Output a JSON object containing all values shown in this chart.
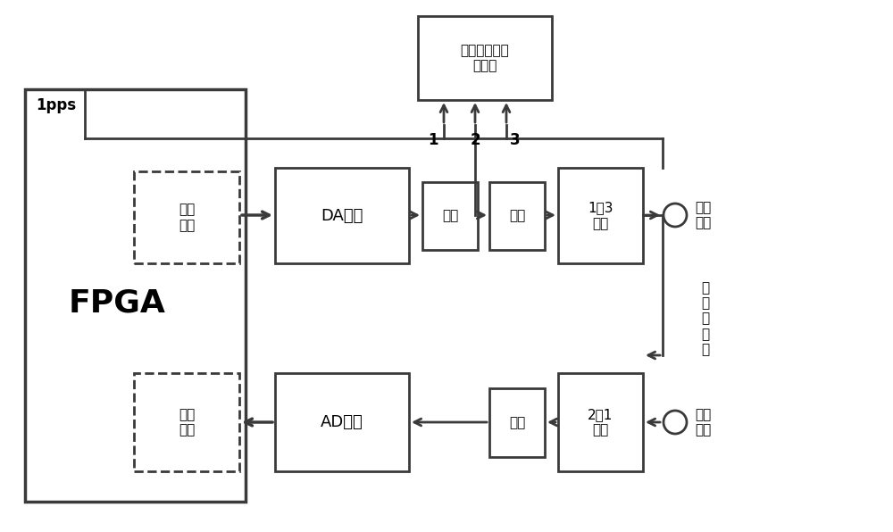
{
  "bg_color": "#ffffff",
  "lc": "#3a3a3a",
  "lw": 2.0,
  "fpga_label": "FPGA",
  "pps_label": "1pps",
  "mod_label": "调制\n输出",
  "rcv_label": "接收\n处理",
  "da_label": "DA转换",
  "amp_label": "放大",
  "filt1_label": "滤波",
  "sw1_label": "1切3\n开关",
  "ad_label": "AD转换",
  "filt2_label": "滤波",
  "sw2_label": "2选1\n开关",
  "chip_label": "高精度时差测\n量芯片",
  "if_out_label": "中频\n输出",
  "if_in_label": "中频\n输入",
  "calib_label": "自\n校\n准\n通\n道",
  "n1": "1",
  "n2": "2",
  "n3": "3"
}
